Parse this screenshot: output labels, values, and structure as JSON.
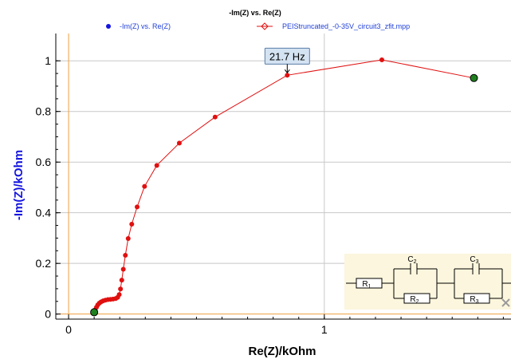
{
  "colors": {
    "background": "#ffffff",
    "grid": "#c8c8c8",
    "axis_zero": "#f0a040",
    "series_line": "#e01010",
    "series_marker": "#e01010",
    "end_marker": "#208020",
    "ylabel": "#1515e0",
    "legend_text": "#1f3fd6",
    "circuit_bg": "#fbf6dd"
  },
  "chart_data": {
    "type": "line",
    "title": "-Im(Z) vs. Re(Z)",
    "xlabel": "Re(Z)/kOhm",
    "ylabel": "-Im(Z)/kOhm",
    "xlim": [
      -0.05,
      1.73
    ],
    "ylim": [
      -0.02,
      1.07
    ],
    "xticks": [
      0,
      1
    ],
    "yticks": [
      0,
      0.2,
      0.4,
      0.6,
      0.8,
      1
    ],
    "xtick_labels": [
      "0",
      "1"
    ],
    "ytick_labels": [
      "0",
      "0.2",
      "0.4",
      "0.6",
      "0.8",
      "1"
    ],
    "grid": true,
    "legend_position": "top",
    "legend": [
      {
        "label": "-Im(Z) vs. Re(Z)",
        "marker": "dot",
        "color": "#1515e0"
      },
      {
        "label": "PEIStruncated_-0-35V_circuit3_zfit.mpp",
        "marker": "diamond-line",
        "color": "#e01010"
      }
    ],
    "annotations": [
      {
        "text": "21.7 Hz",
        "x": 0.855,
        "y": 0.943
      }
    ],
    "series": [
      {
        "name": "PEIStruncated_-0-35V_circuit3_zfit.mpp",
        "x": [
          0.1,
          0.104,
          0.109,
          0.114,
          0.12,
          0.127,
          0.135,
          0.144,
          0.154,
          0.164,
          0.174,
          0.184,
          0.192,
          0.198,
          0.203,
          0.208,
          0.214,
          0.222,
          0.233,
          0.247,
          0.268,
          0.297,
          0.345,
          0.433,
          0.573,
          0.855,
          1.225,
          1.585
        ],
        "y": [
          0.007,
          0.017,
          0.027,
          0.036,
          0.043,
          0.048,
          0.052,
          0.055,
          0.057,
          0.058,
          0.059,
          0.061,
          0.066,
          0.077,
          0.099,
          0.134,
          0.177,
          0.232,
          0.298,
          0.355,
          0.423,
          0.504,
          0.587,
          0.675,
          0.778,
          0.943,
          1.004,
          0.932
        ]
      }
    ],
    "end_points": [
      {
        "x": 0.1,
        "y": 0.007
      },
      {
        "x": 1.585,
        "y": 0.932
      }
    ]
  },
  "circuit": {
    "elements": [
      "R1",
      "C2",
      "R2",
      "C3",
      "R3"
    ],
    "labels": {
      "R1": {
        "main": "R",
        "sub": "1"
      },
      "C2": {
        "main": "C",
        "sub": "2"
      },
      "R2": {
        "main": "R",
        "sub": "2"
      },
      "C3": {
        "main": "C",
        "sub": "3"
      },
      "R3": {
        "main": "R",
        "sub": "3"
      }
    },
    "close_icon": "close-icon"
  }
}
